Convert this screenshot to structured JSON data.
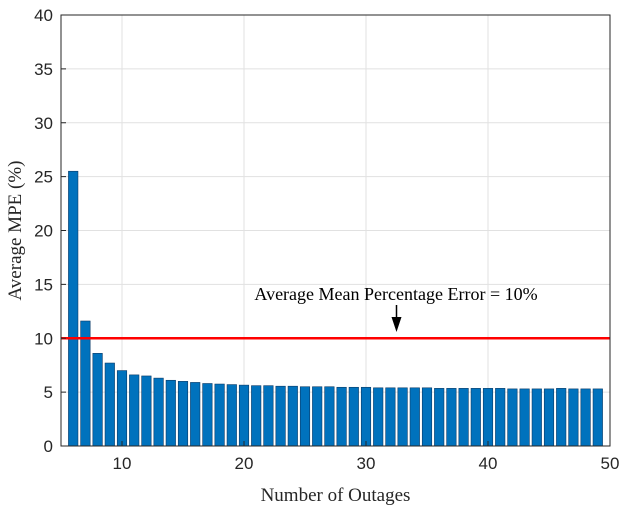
{
  "chart_data": {
    "type": "bar",
    "xlabel": "Number of Outages",
    "ylabel": "Average MPE (%)",
    "xlim": [
      5,
      50
    ],
    "ylim": [
      0,
      40
    ],
    "xticks": [
      10,
      20,
      30,
      40,
      50
    ],
    "yticks": [
      0,
      5,
      10,
      15,
      20,
      25,
      30,
      35,
      40
    ],
    "grid": true,
    "x": [
      6,
      7,
      8,
      9,
      10,
      11,
      12,
      13,
      14,
      15,
      16,
      17,
      18,
      19,
      20,
      21,
      22,
      23,
      24,
      25,
      26,
      27,
      28,
      29,
      30,
      31,
      32,
      33,
      34,
      35,
      36,
      37,
      38,
      39,
      40,
      41,
      42,
      43,
      44,
      45,
      46,
      47,
      48,
      49
    ],
    "values": [
      25.5,
      11.6,
      8.6,
      7.7,
      7.0,
      6.6,
      6.5,
      6.3,
      6.1,
      6.0,
      5.9,
      5.8,
      5.75,
      5.7,
      5.65,
      5.6,
      5.6,
      5.55,
      5.55,
      5.5,
      5.5,
      5.5,
      5.45,
      5.45,
      5.45,
      5.4,
      5.4,
      5.4,
      5.4,
      5.4,
      5.35,
      5.35,
      5.35,
      5.35,
      5.35,
      5.35,
      5.3,
      5.3,
      5.3,
      5.3,
      5.35,
      5.3,
      5.3,
      5.3
    ],
    "bar_color": "#0072BD",
    "reference_line": {
      "y": 10,
      "color": "#FF0000"
    },
    "annotation": {
      "text": "Average Mean Percentage Error = 10%",
      "arrow_x": 32.5
    }
  }
}
